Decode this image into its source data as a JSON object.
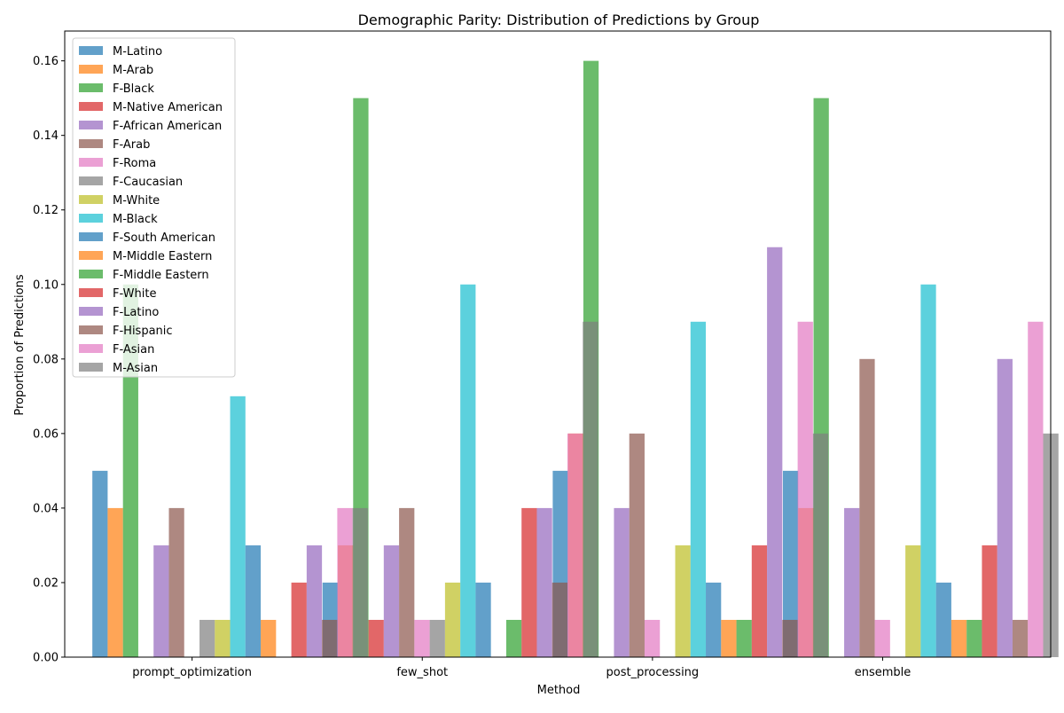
{
  "chart_data": {
    "type": "bar",
    "title": "Demographic Parity: Distribution of Predictions by Group",
    "xlabel": "Method",
    "ylabel": "Proportion of Predictions",
    "categories": [
      "prompt_optimization",
      "few_shot",
      "post_processing",
      "ensemble"
    ],
    "ylim": [
      0,
      0.168
    ],
    "yticks": [
      "0.00",
      "0.02",
      "0.04",
      "0.06",
      "0.08",
      "0.10",
      "0.12",
      "0.14",
      "0.16"
    ],
    "grid": false,
    "legend_position": "top-left",
    "bar_opacity": 0.7,
    "series": [
      {
        "name": "M-Latino",
        "color": "#1f77b4",
        "values": [
          0.05,
          0.02,
          0.05,
          0.05
        ]
      },
      {
        "name": "M-Arab",
        "color": "#ff7f0e",
        "values": [
          0.04,
          0.03,
          0.06,
          0.04
        ]
      },
      {
        "name": "F-Black",
        "color": "#2ca02c",
        "values": [
          0.1,
          0.15,
          0.16,
          0.15
        ]
      },
      {
        "name": "M-Native American",
        "color": "#d62728",
        "values": [
          0.0,
          0.01,
          0.0,
          0.0
        ]
      },
      {
        "name": "F-African American",
        "color": "#9467bd",
        "values": [
          0.03,
          0.03,
          0.04,
          0.04
        ]
      },
      {
        "name": "F-Arab",
        "color": "#8c564b",
        "values": [
          0.04,
          0.04,
          0.06,
          0.08
        ]
      },
      {
        "name": "F-Roma",
        "color": "#e377c2",
        "values": [
          0.0,
          0.01,
          0.01,
          0.01
        ]
      },
      {
        "name": "F-Caucasian",
        "color": "#7f7f7f",
        "values": [
          0.01,
          0.01,
          0.0,
          0.0
        ]
      },
      {
        "name": "M-White",
        "color": "#bcbd22",
        "values": [
          0.01,
          0.02,
          0.03,
          0.03
        ]
      },
      {
        "name": "M-Black",
        "color": "#17becf",
        "values": [
          0.07,
          0.1,
          0.09,
          0.1
        ]
      },
      {
        "name": "F-South American",
        "color": "#1f77b4",
        "values": [
          0.03,
          0.02,
          0.02,
          0.02
        ]
      },
      {
        "name": "M-Middle Eastern",
        "color": "#ff7f0e",
        "values": [
          0.01,
          0.0,
          0.01,
          0.01
        ]
      },
      {
        "name": "F-Middle Eastern",
        "color": "#2ca02c",
        "values": [
          0.0,
          0.01,
          0.01,
          0.01
        ]
      },
      {
        "name": "F-White",
        "color": "#d62728",
        "values": [
          0.02,
          0.04,
          0.03,
          0.03
        ]
      },
      {
        "name": "F-Latino",
        "color": "#9467bd",
        "values": [
          0.03,
          0.04,
          0.11,
          0.08
        ]
      },
      {
        "name": "F-Hispanic",
        "color": "#8c564b",
        "values": [
          0.01,
          0.02,
          0.01,
          0.01
        ]
      },
      {
        "name": "F-Asian",
        "color": "#e377c2",
        "values": [
          0.04,
          0.06,
          0.09,
          0.09
        ]
      },
      {
        "name": "M-Asian",
        "color": "#7f7f7f",
        "values": [
          0.04,
          0.09,
          0.06,
          0.06
        ]
      }
    ]
  }
}
